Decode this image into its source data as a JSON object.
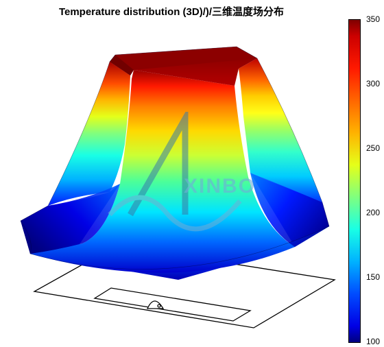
{
  "chart": {
    "type": "3d-surface-colormap",
    "title": "Temperature distribution (3D)/)/三维温度场分布",
    "title_fontsize": 15,
    "title_fontweight": 600,
    "background_color": "#ffffff",
    "axis_line_color": "#000000",
    "axis_line_width": 1.2,
    "surface": {
      "description": "Bell-shaped temperature field rising from flat plate to hot plateau at center",
      "u_range": [
        0,
        1
      ],
      "v_range": [
        0,
        1
      ],
      "peak_value": 350,
      "base_value": 100,
      "plateau_center_u": 0.5,
      "plateau_center_v": 0.5,
      "plateau_half_width_u": 0.18,
      "plateau_half_width_v": 0.3,
      "contour_levels": [
        100,
        125,
        150,
        175,
        200,
        225,
        250,
        275,
        300,
        325,
        350
      ]
    },
    "base_plate": {
      "outline_color": "#000000",
      "outline_width": 1.3,
      "fill_color": "none"
    },
    "colormap": {
      "name": "jet",
      "min": 100,
      "max": 350,
      "stops": [
        {
          "t": 0.0,
          "hex": "#00007f"
        },
        {
          "t": 0.05,
          "hex": "#0000e5"
        },
        {
          "t": 0.15,
          "hex": "#004cff"
        },
        {
          "t": 0.25,
          "hex": "#00b2ff"
        },
        {
          "t": 0.35,
          "hex": "#19ffe5"
        },
        {
          "t": 0.45,
          "hex": "#7fff7f"
        },
        {
          "t": 0.55,
          "hex": "#e5ff19"
        },
        {
          "t": 0.65,
          "hex": "#ffb200"
        },
        {
          "t": 0.75,
          "hex": "#ff6600"
        },
        {
          "t": 0.85,
          "hex": "#ff1900"
        },
        {
          "t": 0.95,
          "hex": "#cc0000"
        },
        {
          "t": 1.0,
          "hex": "#7f0000"
        }
      ]
    },
    "colorbar": {
      "ticks": [
        100,
        150,
        200,
        250,
        300,
        350
      ],
      "tick_fontsize": 12,
      "tick_color": "#000000",
      "border_color": "#000000",
      "border_width": 1
    },
    "watermark": {
      "text": "XINBO",
      "text_color": "#6fb0d6",
      "text_opacity": 0.6,
      "text_fontsize": 28,
      "logo_triangle_color": "#3a7aa8",
      "logo_wave_color": "#6fb0d6",
      "logo_opacity": 0.55
    }
  }
}
